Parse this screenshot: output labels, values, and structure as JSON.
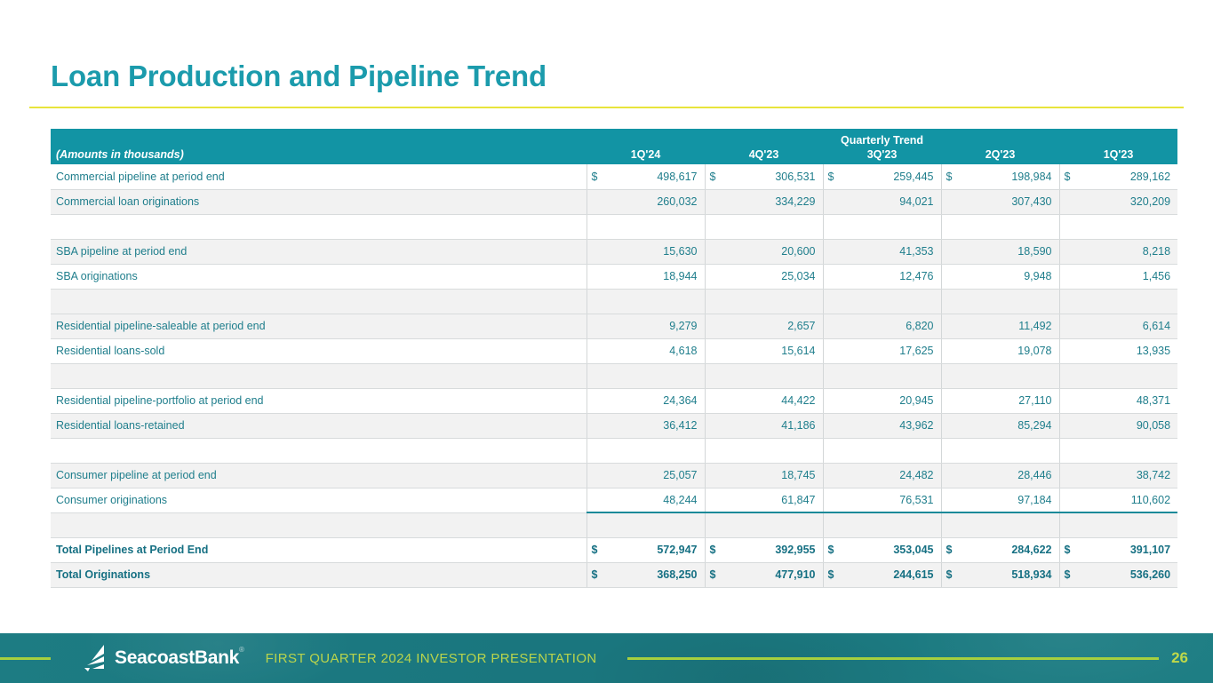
{
  "slide": {
    "title": "Loan Production and Pipeline Trend",
    "page_number": "26"
  },
  "footer": {
    "logo_text": "SeacoastBank",
    "logo_mark": "®",
    "caption": "FIRST QUARTER 2024 INVESTOR PRESENTATION"
  },
  "table": {
    "group_header": "Quarterly Trend",
    "corner_label": "(Amounts in thousands)",
    "columns": [
      "1Q'24",
      "4Q'23",
      "3Q'23",
      "2Q'23",
      "1Q'23"
    ],
    "rows": [
      {
        "label": "Commercial pipeline at period end",
        "dollar": true,
        "values": [
          "498,617",
          "306,531",
          "259,445",
          "198,984",
          "289,162"
        ],
        "shaded": false
      },
      {
        "label": "Commercial loan originations",
        "values": [
          "260,032",
          "334,229",
          "94,021",
          "307,430",
          "320,209"
        ],
        "shaded": true
      },
      {
        "label": "",
        "blank": true,
        "values": [
          "",
          "",
          "",
          "",
          ""
        ],
        "shaded": false
      },
      {
        "label": "SBA pipeline at period end",
        "values": [
          "15,630",
          "20,600",
          "41,353",
          "18,590",
          "8,218"
        ],
        "shaded": true
      },
      {
        "label": "SBA originations",
        "values": [
          "18,944",
          "25,034",
          "12,476",
          "9,948",
          "1,456"
        ],
        "shaded": false
      },
      {
        "label": "",
        "blank": true,
        "values": [
          "",
          "",
          "",
          "",
          ""
        ],
        "shaded": true
      },
      {
        "label": "Residential pipeline-saleable at period end",
        "values": [
          "9,279",
          "2,657",
          "6,820",
          "11,492",
          "6,614"
        ],
        "shaded": true
      },
      {
        "label": "Residential loans-sold",
        "values": [
          "4,618",
          "15,614",
          "17,625",
          "19,078",
          "13,935"
        ],
        "shaded": false
      },
      {
        "label": "",
        "blank": true,
        "values": [
          "",
          "",
          "",
          "",
          ""
        ],
        "shaded": true
      },
      {
        "label": "Residential pipeline-portfolio at period end",
        "values": [
          "24,364",
          "44,422",
          "20,945",
          "27,110",
          "48,371"
        ],
        "shaded": false
      },
      {
        "label": "Residential loans-retained",
        "values": [
          "36,412",
          "41,186",
          "43,962",
          "85,294",
          "90,058"
        ],
        "shaded": true
      },
      {
        "label": "",
        "blank": true,
        "values": [
          "",
          "",
          "",
          "",
          ""
        ],
        "shaded": false
      },
      {
        "label": "Consumer pipeline at period end",
        "values": [
          "25,057",
          "18,745",
          "24,482",
          "28,446",
          "38,742"
        ],
        "shaded": true
      },
      {
        "label": "Consumer originations",
        "values": [
          "48,244",
          "61,847",
          "76,531",
          "97,184",
          "110,602"
        ],
        "shaded": false,
        "underline": true
      },
      {
        "label": "",
        "blank": true,
        "values": [
          "",
          "",
          "",
          "",
          ""
        ],
        "shaded": true
      },
      {
        "label": "Total Pipelines at Period End",
        "dollar": true,
        "bold": true,
        "values": [
          "572,947",
          "392,955",
          "353,045",
          "284,622",
          "391,107"
        ],
        "shaded": false
      },
      {
        "label": "Total Originations",
        "dollar": true,
        "bold": true,
        "values": [
          "368,250",
          "477,910",
          "244,615",
          "518,934",
          "536,260"
        ],
        "shaded": true
      }
    ],
    "dollar_sign": "$"
  },
  "colors": {
    "title_teal": "#1b9bac",
    "header_teal": "#1294a4",
    "text_teal": "#1f7e8c",
    "rule_yellow": "#e8e43c",
    "stripe_gray": "#f2f2f2",
    "underline_teal": "#1b8a99",
    "footer_teal": "#1d7c83",
    "footer_accent": "#a6d03f"
  }
}
